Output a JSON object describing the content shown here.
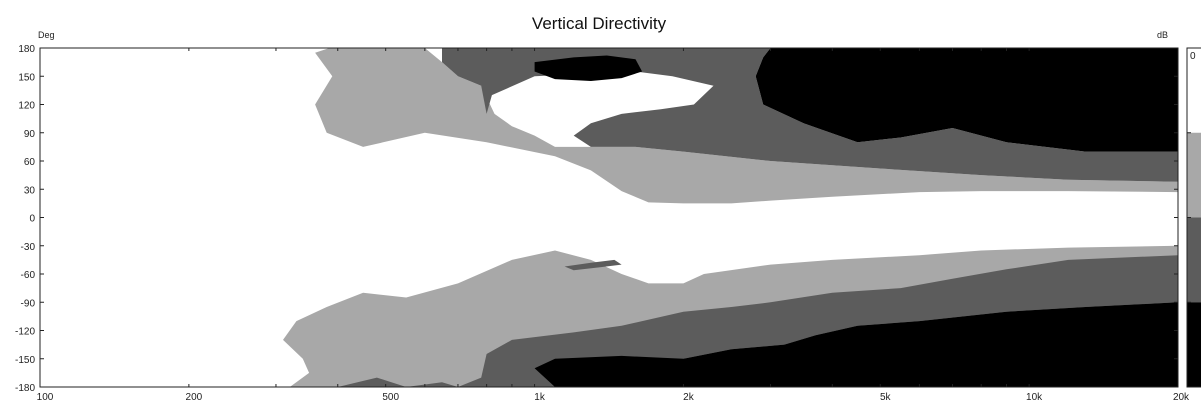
{
  "chart_data": {
    "type": "heatmap",
    "title": "Vertical Directivity",
    "ylabel": "Deg",
    "colorbar_label": "dB",
    "x_scale": "log",
    "xlim": [
      100,
      20000
    ],
    "ylim": [
      -180,
      180
    ],
    "x_ticks": [
      {
        "value": 100,
        "label": "100"
      },
      {
        "value": 200,
        "label": "200"
      },
      {
        "value": 500,
        "label": "500"
      },
      {
        "value": 1000,
        "label": "1k"
      },
      {
        "value": 2000,
        "label": "2k"
      },
      {
        "value": 5000,
        "label": "5k"
      },
      {
        "value": 10000,
        "label": "10k"
      },
      {
        "value": 20000,
        "label": "20k"
      }
    ],
    "y_ticks": [
      {
        "value": 180,
        "label": "180"
      },
      {
        "value": 150,
        "label": "150"
      },
      {
        "value": 120,
        "label": "120"
      },
      {
        "value": 90,
        "label": "90"
      },
      {
        "value": 60,
        "label": "60"
      },
      {
        "value": 30,
        "label": "30"
      },
      {
        "value": 0,
        "label": "0"
      },
      {
        "value": -30,
        "label": "-30"
      },
      {
        "value": -60,
        "label": "-60"
      },
      {
        "value": -90,
        "label": "-90"
      },
      {
        "value": -120,
        "label": "-120"
      },
      {
        "value": -150,
        "label": "-150"
      },
      {
        "value": -180,
        "label": "-180"
      }
    ],
    "colorbar": {
      "visible_label": "0",
      "levels": [
        {
          "color": "#ffffff"
        },
        {
          "color": "#a8a8a8"
        },
        {
          "color": "#5c5c5c"
        },
        {
          "color": "#000000"
        }
      ]
    },
    "regions": [
      {
        "name": "light-gray-upper",
        "level": 1,
        "points": [
          [
            385,
            180
          ],
          [
            600,
            180
          ],
          [
            650,
            165
          ],
          [
            700,
            150
          ],
          [
            780,
            140
          ],
          [
            830,
            110
          ],
          [
            900,
            97
          ],
          [
            1000,
            87
          ],
          [
            1100,
            75
          ],
          [
            1300,
            75
          ],
          [
            1600,
            75
          ],
          [
            2000,
            70
          ],
          [
            3000,
            60
          ],
          [
            5000,
            52
          ],
          [
            8000,
            45
          ],
          [
            12000,
            40
          ],
          [
            20000,
            38
          ],
          [
            20000,
            27
          ],
          [
            12000,
            28
          ],
          [
            8000,
            28
          ],
          [
            6000,
            27
          ],
          [
            4000,
            22
          ],
          [
            3000,
            18
          ],
          [
            2500,
            15
          ],
          [
            2000,
            15
          ],
          [
            1700,
            16
          ],
          [
            1500,
            28
          ],
          [
            1300,
            50
          ],
          [
            1100,
            65
          ],
          [
            800,
            80
          ],
          [
            600,
            90
          ],
          [
            450,
            75
          ],
          [
            380,
            90
          ],
          [
            360,
            120
          ],
          [
            390,
            150
          ],
          [
            360,
            175
          ]
        ]
      },
      {
        "name": "dark-gray-upper",
        "level": 2,
        "points": [
          [
            650,
            180
          ],
          [
            3000,
            180
          ],
          [
            2900,
            170
          ],
          [
            2800,
            150
          ],
          [
            2900,
            120
          ],
          [
            3500,
            100
          ],
          [
            4500,
            80
          ],
          [
            5500,
            85
          ],
          [
            7000,
            95
          ],
          [
            9000,
            80
          ],
          [
            13000,
            70
          ],
          [
            20000,
            70
          ],
          [
            20000,
            38
          ],
          [
            12000,
            40
          ],
          [
            8000,
            45
          ],
          [
            5000,
            52
          ],
          [
            3000,
            60
          ],
          [
            2000,
            70
          ],
          [
            1600,
            75
          ],
          [
            1300,
            75
          ],
          [
            1200,
            87
          ],
          [
            1300,
            100
          ],
          [
            1500,
            110
          ],
          [
            1800,
            115
          ],
          [
            2100,
            120
          ],
          [
            2300,
            140
          ],
          [
            1900,
            150
          ],
          [
            1600,
            155
          ],
          [
            1000,
            150
          ],
          [
            820,
            130
          ],
          [
            800,
            110
          ],
          [
            780,
            140
          ],
          [
            700,
            150
          ],
          [
            650,
            165
          ]
        ]
      },
      {
        "name": "black-upper-island",
        "level": 3,
        "points": [
          [
            1000,
            165
          ],
          [
            1200,
            170
          ],
          [
            1400,
            172
          ],
          [
            1600,
            168
          ],
          [
            1650,
            155
          ],
          [
            1500,
            148
          ],
          [
            1300,
            145
          ],
          [
            1100,
            147
          ],
          [
            1000,
            155
          ]
        ]
      },
      {
        "name": "black-upper-right",
        "level": 3,
        "points": [
          [
            3000,
            180
          ],
          [
            20000,
            180
          ],
          [
            20000,
            70
          ],
          [
            13000,
            70
          ],
          [
            9000,
            80
          ],
          [
            7000,
            95
          ],
          [
            5500,
            85
          ],
          [
            4500,
            80
          ],
          [
            3500,
            100
          ],
          [
            2900,
            120
          ],
          [
            2800,
            150
          ],
          [
            2900,
            170
          ]
        ]
      },
      {
        "name": "light-gray-lower",
        "level": 1,
        "points": [
          [
            320,
            -180
          ],
          [
            800,
            -180
          ],
          [
            1000,
            -170
          ],
          [
            1300,
            -160
          ],
          [
            1800,
            -155
          ],
          [
            2500,
            -145
          ],
          [
            3500,
            -135
          ],
          [
            5000,
            -120
          ],
          [
            7000,
            -110
          ],
          [
            10000,
            -100
          ],
          [
            20000,
            -95
          ],
          [
            20000,
            -30
          ],
          [
            12000,
            -32
          ],
          [
            8000,
            -35
          ],
          [
            6000,
            -40
          ],
          [
            4000,
            -45
          ],
          [
            3000,
            -50
          ],
          [
            2200,
            -60
          ],
          [
            2000,
            -70
          ],
          [
            1700,
            -70
          ],
          [
            1500,
            -60
          ],
          [
            1300,
            -45
          ],
          [
            1100,
            -35
          ],
          [
            900,
            -45
          ],
          [
            700,
            -70
          ],
          [
            550,
            -85
          ],
          [
            450,
            -80
          ],
          [
            380,
            -95
          ],
          [
            330,
            -110
          ],
          [
            310,
            -130
          ],
          [
            340,
            -150
          ],
          [
            350,
            -165
          ]
        ]
      },
      {
        "name": "dark-gray-lower",
        "level": 2,
        "points": [
          [
            400,
            -180
          ],
          [
            2500,
            -180
          ],
          [
            2200,
            -170
          ],
          [
            2000,
            -150
          ],
          [
            2500,
            -140
          ],
          [
            3200,
            -135
          ],
          [
            3700,
            -125
          ],
          [
            4500,
            -115
          ],
          [
            6000,
            -110
          ],
          [
            9000,
            -100
          ],
          [
            13000,
            -95
          ],
          [
            20000,
            -90
          ],
          [
            20000,
            -40
          ],
          [
            12000,
            -45
          ],
          [
            9000,
            -55
          ],
          [
            7000,
            -65
          ],
          [
            5500,
            -75
          ],
          [
            4000,
            -80
          ],
          [
            3000,
            -90
          ],
          [
            2500,
            -95
          ],
          [
            2000,
            -100
          ],
          [
            1500,
            -115
          ],
          [
            1200,
            -122
          ],
          [
            900,
            -130
          ],
          [
            800,
            -145
          ],
          [
            780,
            -170
          ],
          [
            700,
            -180
          ],
          [
            650,
            -175
          ],
          [
            550,
            -180
          ],
          [
            480,
            -170
          ]
        ]
      },
      {
        "name": "dark-gray-lower-island",
        "level": 2,
        "points": [
          [
            1150,
            -52
          ],
          [
            1300,
            -48
          ],
          [
            1450,
            -45
          ],
          [
            1500,
            -50
          ],
          [
            1350,
            -53
          ],
          [
            1200,
            -56
          ]
        ]
      },
      {
        "name": "black-lower",
        "level": 3,
        "points": [
          [
            1100,
            -180
          ],
          [
            20000,
            -180
          ],
          [
            20000,
            -90
          ],
          [
            13000,
            -95
          ],
          [
            9000,
            -100
          ],
          [
            6000,
            -110
          ],
          [
            4500,
            -115
          ],
          [
            3700,
            -125
          ],
          [
            3200,
            -135
          ],
          [
            2500,
            -140
          ],
          [
            2000,
            -150
          ],
          [
            1500,
            -147
          ],
          [
            1100,
            -150
          ],
          [
            1000,
            -160
          ]
        ]
      }
    ]
  }
}
